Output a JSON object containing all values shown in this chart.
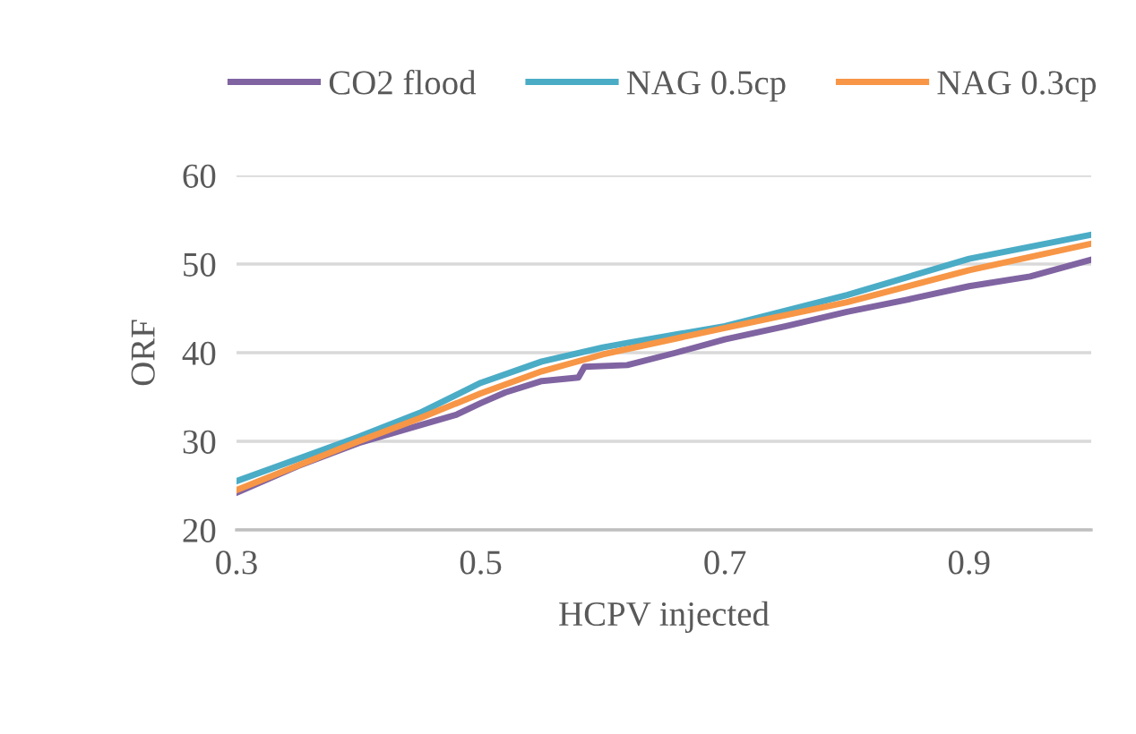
{
  "chart_data": {
    "type": "line",
    "xlabel": "HCPV injected",
    "ylabel": "ORF",
    "xlim": [
      0.3,
      1.0
    ],
    "ylim": [
      20,
      60
    ],
    "xticks": [
      0.3,
      0.5,
      0.7,
      0.9
    ],
    "yticks": [
      20,
      30,
      40,
      50,
      60
    ],
    "grid": "y",
    "legend": "top",
    "marker": "none",
    "line_style": "solid",
    "series": [
      {
        "name": "CO2 flood",
        "color": "#8064a2",
        "x": [
          0.3,
          0.35,
          0.4,
          0.45,
          0.48,
          0.5,
          0.52,
          0.55,
          0.58,
          0.585,
          0.62,
          0.66,
          0.7,
          0.75,
          0.8,
          0.85,
          0.9,
          0.95,
          1.0
        ],
        "values": [
          24.2,
          27.2,
          29.8,
          31.8,
          33.0,
          34.3,
          35.5,
          36.8,
          37.2,
          38.4,
          38.6,
          40.0,
          41.5,
          43.0,
          44.6,
          46.0,
          47.5,
          48.6,
          50.5
        ]
      },
      {
        "name": "NAG 0.5cp",
        "color": "#4bacc6",
        "x": [
          0.3,
          0.4,
          0.45,
          0.5,
          0.55,
          0.6,
          0.62,
          0.7,
          0.8,
          0.9,
          1.0
        ],
        "values": [
          25.5,
          30.5,
          33.2,
          36.6,
          39.0,
          40.6,
          41.1,
          43.0,
          46.5,
          50.6,
          53.3
        ]
      },
      {
        "name": "NAG 0.3cp",
        "color": "#f79646",
        "x": [
          0.3,
          0.4,
          0.45,
          0.5,
          0.55,
          0.6,
          0.7,
          0.8,
          0.9,
          1.0
        ],
        "values": [
          24.5,
          30.0,
          32.6,
          35.4,
          37.9,
          39.8,
          42.8,
          45.7,
          49.3,
          52.3
        ]
      }
    ]
  }
}
